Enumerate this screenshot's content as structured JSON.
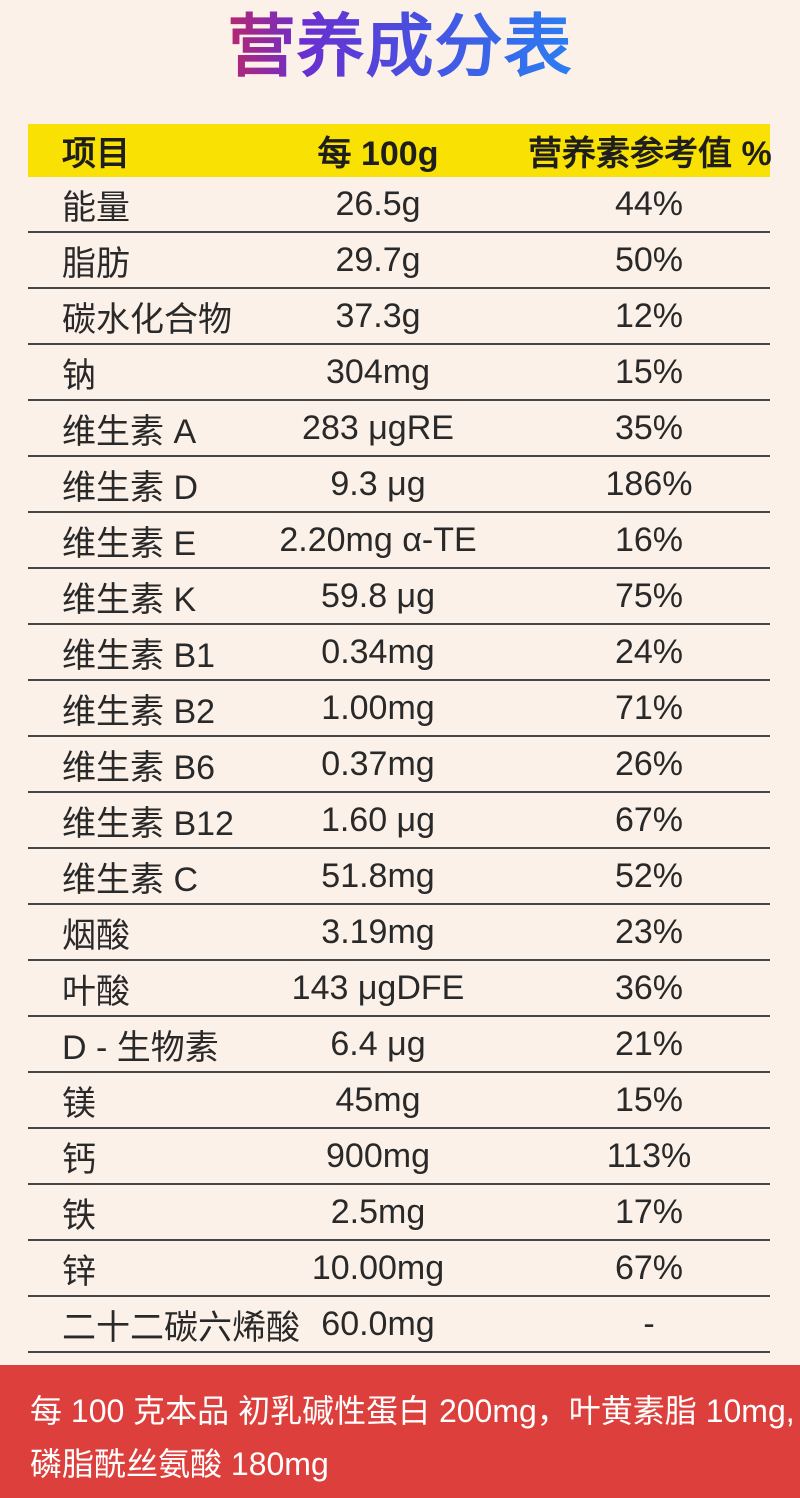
{
  "page": {
    "background_color": "#fcf1e9"
  },
  "title": {
    "text": "营养成分表",
    "gradient_from": "#b8266e",
    "gradient_mid": "#6a2fd0",
    "gradient_to": "#2b7ef2"
  },
  "table": {
    "header": {
      "background_color": "#f9e104",
      "item": "项目",
      "per_100g": "每 100g",
      "nrv_percent": "营养素参考值 %"
    },
    "divider_color": "#454545",
    "rows": [
      {
        "name": "能量",
        "per_100g": "26.5g",
        "nrv": "44%"
      },
      {
        "name": "脂肪",
        "per_100g": "29.7g",
        "nrv": "50%"
      },
      {
        "name": "碳水化合物",
        "per_100g": "37.3g",
        "nrv": "12%"
      },
      {
        "name": "钠",
        "per_100g": "304mg",
        "nrv": "15%"
      },
      {
        "name": "维生素 A",
        "per_100g": "283 μgRE",
        "nrv": "35%"
      },
      {
        "name": "维生素 D",
        "per_100g": "9.3 μg",
        "nrv": "186%"
      },
      {
        "name": "维生素 E",
        "per_100g": "2.20mg α-TE",
        "nrv": "16%"
      },
      {
        "name": "维生素 K",
        "per_100g": "59.8 μg",
        "nrv": "75%"
      },
      {
        "name": "维生素 B1",
        "per_100g": "0.34mg",
        "nrv": "24%"
      },
      {
        "name": "维生素 B2",
        "per_100g": "1.00mg",
        "nrv": "71%"
      },
      {
        "name": "维生素 B6",
        "per_100g": "0.37mg",
        "nrv": "26%"
      },
      {
        "name": "维生素 B12",
        "per_100g": "1.60 μg",
        "nrv": "67%"
      },
      {
        "name": "维生素 C",
        "per_100g": "51.8mg",
        "nrv": "52%"
      },
      {
        "name": "烟酸",
        "per_100g": "3.19mg",
        "nrv": "23%"
      },
      {
        "name": "叶酸",
        "per_100g": "143 μgDFE",
        "nrv": "36%"
      },
      {
        "name": "D - 生物素",
        "per_100g": "6.4 μg",
        "nrv": "21%"
      },
      {
        "name": "镁",
        "per_100g": "45mg",
        "nrv": "15%"
      },
      {
        "name": "钙",
        "per_100g": "900mg",
        "nrv": "113%"
      },
      {
        "name": "铁",
        "per_100g": "2.5mg",
        "nrv": "17%"
      },
      {
        "name": "锌",
        "per_100g": "10.00mg",
        "nrv": "67%"
      },
      {
        "name": "二十二碳六烯酸",
        "per_100g": "60.0mg",
        "nrv": "-"
      }
    ]
  },
  "footer": {
    "background_color": "#dd403c",
    "line1": "每 100 克本品 初乳碱性蛋白 200mg，叶黄素脂 10mg,",
    "line2": "磷脂酰丝氨酸 180mg"
  }
}
